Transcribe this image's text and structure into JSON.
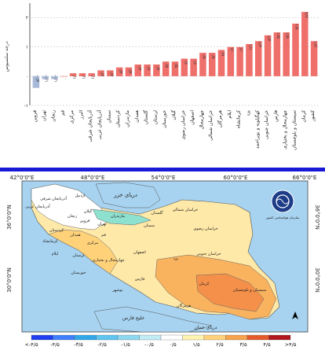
{
  "chart_data": {
    "type": "bar",
    "ylabel": "درجه سلسیوس",
    "ylim": [
      -1,
      2.5
    ],
    "yticks": [
      "-۱",
      "۰",
      "۱",
      "۲"
    ],
    "ytick_values": [
      -1,
      0,
      1,
      2
    ],
    "grid": true,
    "categories": [
      "قزوین",
      "تهران",
      "زنجان",
      "قم",
      "مرکزی",
      "البرز",
      "آذربایجان شرقی",
      "آذربایجان غربی",
      "سمنان",
      "کردستان",
      "مازندران",
      "همدان",
      "گلستان",
      "لرستان",
      "خوزستان",
      "گیلان",
      "خراسان رضوی",
      "اصفهان",
      "چهارمحال",
      "خراسان شمالی",
      "هرمزگان",
      "ایلام",
      "کرمانشاه",
      "یزد",
      "کهگیلویه و بویراحمد",
      "خراسان جنوبی",
      "فارس",
      "چهارمحال و بختیاری",
      "سیستان و بلوچستان",
      "کرمان",
      "کشور"
    ],
    "values": [
      -0.4,
      -0.1,
      -0.1,
      0.0,
      0.1,
      0.1,
      0.1,
      0.2,
      0.2,
      0.3,
      0.3,
      0.4,
      0.4,
      0.4,
      0.5,
      0.5,
      0.6,
      0.6,
      0.8,
      0.8,
      0.9,
      1.0,
      1.0,
      1.1,
      1.2,
      1.4,
      1.5,
      1.5,
      1.8,
      2.2,
      1.2
    ],
    "data_labels": [
      "-۰/۴",
      "-۰/۱",
      "-۰/۱",
      "۰",
      "۰/۱",
      "۰/۱",
      "۰/۱",
      "۰/۲",
      "۰/۲",
      "۰/۳",
      "۰/۳",
      "۰/۴",
      "۰/۴",
      "۰/۴",
      "۰/۵",
      "۰/۵",
      "۰/۶",
      "۰/۶",
      "۰/۸",
      "۰/۸",
      "۰/۹",
      "۱/۰",
      "۱/۰",
      "۱/۱",
      "۱/۲",
      "۱/۴",
      "۱/۵",
      "۱/۵",
      "۱/۸",
      "۲/۲",
      "۱/۲"
    ],
    "colors": {
      "positive": "#ef6f6a",
      "negative": "#a8b8d8"
    }
  },
  "map": {
    "lon_labels": [
      "42°0'0\"E",
      "48°0'0\"E",
      "54°0'0\"E",
      "60°0'0\"E",
      "66°0'0\"E"
    ],
    "lat_labels": [
      "36°0'0\"N",
      "30°0'0\"N"
    ],
    "sea_labels": {
      "caspian": "دریای خزر",
      "gulf": "خلیج فارس",
      "oman": "دریای عمان"
    },
    "province_labels": [
      "آذربایجان شرقی",
      "آذربایجان غربی",
      "اردبیل",
      "گیلان",
      "مازندران",
      "گلستان",
      "خراسان شمالی",
      "خراسان رضوی",
      "سمنان",
      "تهران",
      "قزوین",
      "زنجان",
      "کردستان",
      "همدان",
      "کرمانشاه",
      "مرکزی",
      "قم",
      "اصفهان",
      "یزد",
      "خراسان جنوبی",
      "لرستان",
      "ایلام",
      "خوزستان",
      "فارس",
      "کرمان",
      "سیستان و بلوچستان",
      "هرمزگان",
      "بوشهر",
      "چهارمحال و بختیاری"
    ],
    "logo_text": "سازمان هواشناسی کشور",
    "colors": {
      "sea": "#a7d3f0",
      "north": "#ffffff",
      "nw": "#ffffff",
      "mid": "#fff2b0",
      "light": "#ffd27a",
      "warm": "#f9b25e",
      "hot": "#f4904a",
      "caspian_coast": "#8ee0cf"
    }
  },
  "legend": {
    "labels": [
      "<-۴/۵",
      "-۴/۵",
      "-۳/۵",
      "-۲/۵",
      "-۱/۵",
      "-۰/۵",
      "۰/۵",
      "۱/۵",
      "۲/۵",
      "۳/۵",
      "۴/۵",
      ">۴/۵"
    ],
    "colors": [
      "#1f3ff0",
      "#3f7fff",
      "#2fa7e8",
      "#5ec4f0",
      "#8cd8f0",
      "#c0ecf5",
      "#ffffff",
      "#fff3b0",
      "#ffd27a",
      "#f7a14b",
      "#e55a2b",
      "#b0171f"
    ]
  }
}
